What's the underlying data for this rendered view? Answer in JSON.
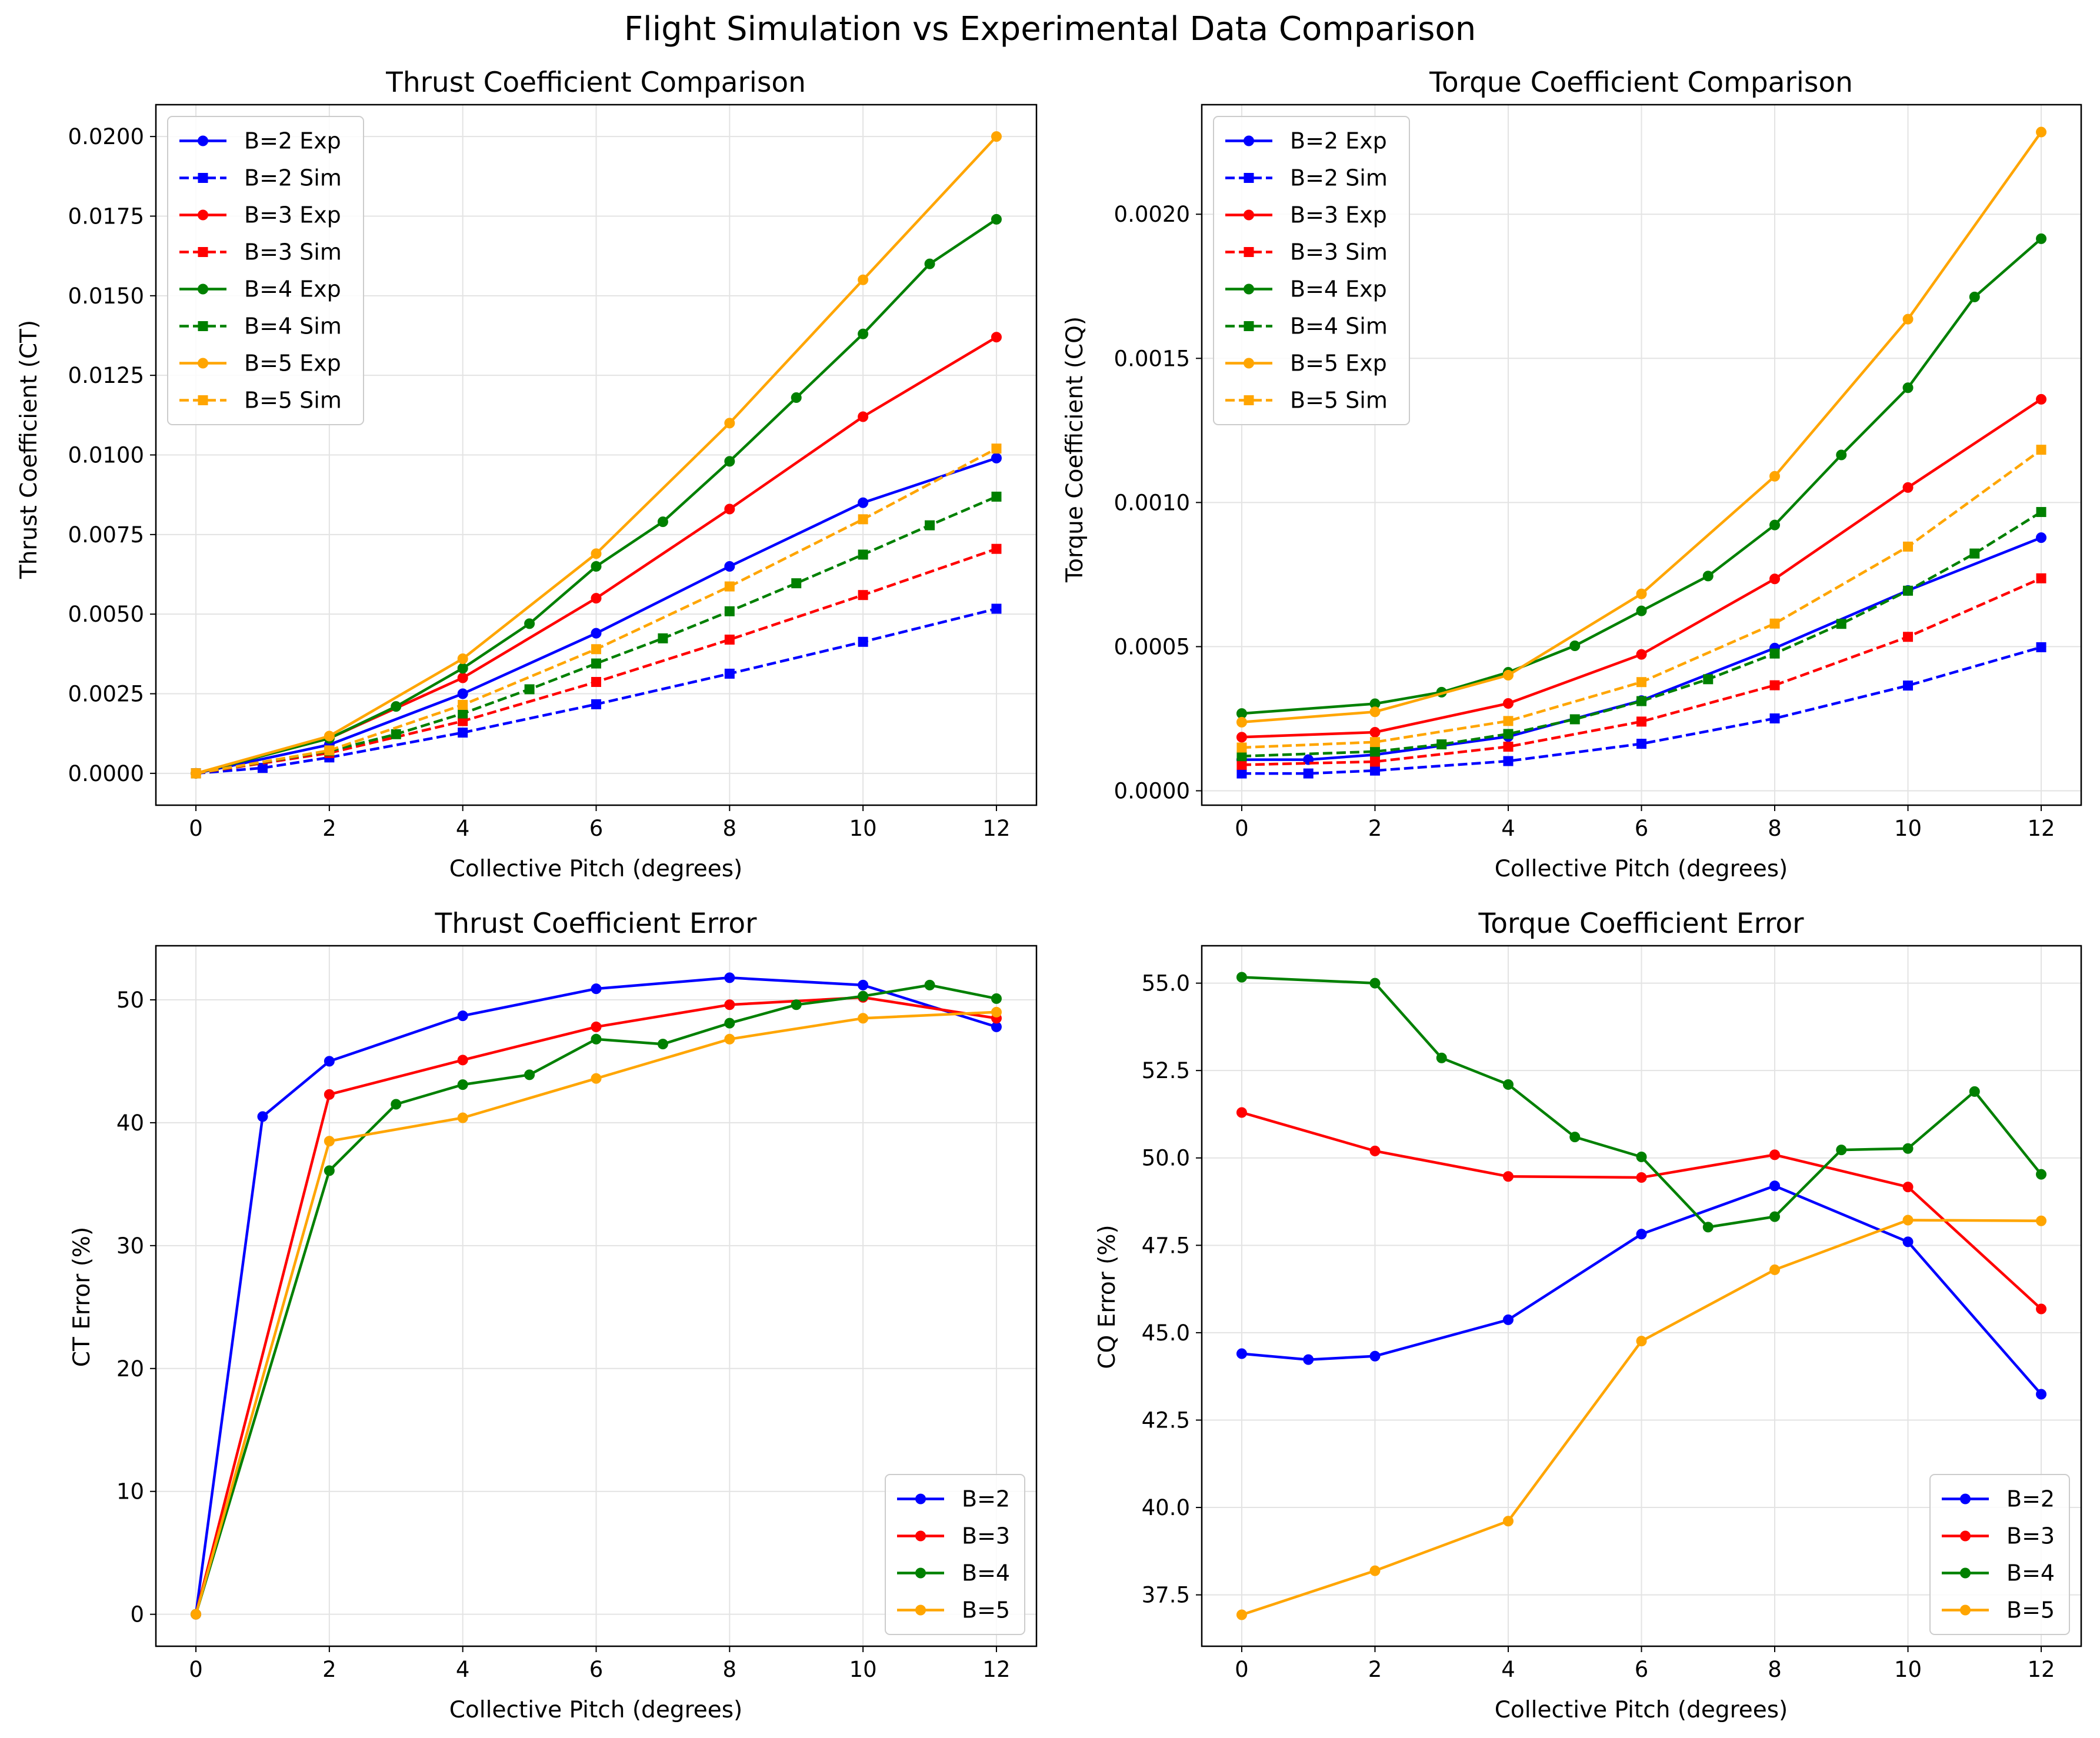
{
  "figure": {
    "suptitle": "Flight Simulation vs Experimental Data Comparison"
  },
  "colors": {
    "B2": "#0000ff",
    "B3": "#ff0000",
    "B4": "#008000",
    "B5": "#ffa500",
    "grid": "#e3e3e3",
    "axes": "#000000"
  },
  "chart_data": [
    {
      "type": "line",
      "title": "Thrust Coefficient Comparison",
      "xlabel": "Collective Pitch (degrees)",
      "ylabel": "Thrust Coefficient (CT)",
      "xlim": [
        -0.6,
        12.6
      ],
      "ylim": [
        -0.001,
        0.021
      ],
      "xticks": [
        0,
        2,
        4,
        6,
        8,
        10,
        12
      ],
      "yticks": [
        0,
        0.0025,
        0.005,
        0.0075,
        0.01,
        0.0125,
        0.015,
        0.0175,
        0.02
      ],
      "ytick_labels": [
        "0.0000",
        "0.0025",
        "0.0050",
        "0.0075",
        "0.0100",
        "0.0125",
        "0.0150",
        "0.0175",
        "0.0200"
      ],
      "grid": true,
      "legend": "top-left",
      "series": [
        {
          "name": "B=2 Exp",
          "color": "B2",
          "style": "solid",
          "marker": "circle",
          "x": [
            0,
            2,
            4,
            6,
            8,
            10,
            12
          ],
          "y": [
            0,
            0.0009,
            0.0025,
            0.0044,
            0.0065,
            0.0085,
            0.0099
          ]
        },
        {
          "name": "B=2 Sim",
          "color": "B2",
          "style": "dashed",
          "marker": "square",
          "x": [
            0,
            1,
            2,
            4,
            6,
            8,
            10,
            12
          ],
          "y": [
            0,
            0.00017,
            0.0005,
            0.00128,
            0.00217,
            0.00313,
            0.00413,
            0.00517
          ]
        },
        {
          "name": "B=3 Exp",
          "color": "B3",
          "style": "solid",
          "marker": "circle",
          "x": [
            0,
            2,
            4,
            6,
            8,
            10,
            12
          ],
          "y": [
            0,
            0.0011,
            0.003,
            0.0055,
            0.0083,
            0.0112,
            0.0137
          ]
        },
        {
          "name": "B=3 Sim",
          "color": "B3",
          "style": "dashed",
          "marker": "square",
          "x": [
            0,
            2,
            4,
            6,
            8,
            10,
            12
          ],
          "y": [
            0,
            0.00064,
            0.00164,
            0.00287,
            0.0042,
            0.0056,
            0.00705
          ]
        },
        {
          "name": "B=4 Exp",
          "color": "B4",
          "style": "solid",
          "marker": "circle",
          "x": [
            0,
            2,
            3,
            4,
            5,
            6,
            7,
            8,
            9,
            10,
            11,
            12
          ],
          "y": [
            0,
            0.0011,
            0.0021,
            0.0033,
            0.0047,
            0.0065,
            0.0079,
            0.0098,
            0.0118,
            0.0138,
            0.016,
            0.0174
          ]
        },
        {
          "name": "B=4 Sim",
          "color": "B4",
          "style": "dashed",
          "marker": "square",
          "x": [
            0,
            2,
            3,
            4,
            5,
            6,
            7,
            8,
            9,
            10,
            11,
            12
          ],
          "y": [
            0,
            0.0007,
            0.00123,
            0.00188,
            0.00264,
            0.00345,
            0.00424,
            0.00509,
            0.00597,
            0.00687,
            0.00779,
            0.00869
          ]
        },
        {
          "name": "B=5 Exp",
          "color": "B5",
          "style": "solid",
          "marker": "circle",
          "x": [
            0,
            2,
            4,
            6,
            8,
            10,
            12
          ],
          "y": [
            0,
            0.00117,
            0.0036,
            0.0069,
            0.011,
            0.0155,
            0.02
          ]
        },
        {
          "name": "B=5 Sim",
          "color": "B5",
          "style": "dashed",
          "marker": "square",
          "x": [
            0,
            2,
            4,
            6,
            8,
            10,
            12
          ],
          "y": [
            0,
            0.00072,
            0.00215,
            0.0039,
            0.00587,
            0.00798,
            0.0102
          ]
        }
      ]
    },
    {
      "type": "line",
      "title": "Torque Coefficient Comparison",
      "xlabel": "Collective Pitch (degrees)",
      "ylabel": "Torque Coefficient (CQ)",
      "xlim": [
        -0.6,
        12.6
      ],
      "ylim": [
        -5e-05,
        0.00238
      ],
      "xticks": [
        0,
        2,
        4,
        6,
        8,
        10,
        12
      ],
      "yticks": [
        0,
        0.0005,
        0.001,
        0.0015,
        0.002
      ],
      "ytick_labels": [
        "0.0000",
        "0.0005",
        "0.0010",
        "0.0015",
        "0.0020"
      ],
      "grid": true,
      "legend": "top-left",
      "series": [
        {
          "name": "B=2 Exp",
          "color": "B2",
          "style": "solid",
          "marker": "circle",
          "x": [
            0,
            1,
            2,
            4,
            6,
            8,
            10,
            12
          ],
          "y": [
            0.000108,
            0.000108,
            0.000125,
            0.000188,
            0.000313,
            0.000495,
            0.000695,
            0.000878
          ]
        },
        {
          "name": "B=2 Sim",
          "color": "B2",
          "style": "dashed",
          "marker": "square",
          "x": [
            0,
            1,
            2,
            4,
            6,
            8,
            10,
            12
          ],
          "y": [
            6e-05,
            6e-05,
            7e-05,
            0.000103,
            0.000163,
            0.000251,
            0.000365,
            0.000498
          ]
        },
        {
          "name": "B=3 Exp",
          "color": "B3",
          "style": "solid",
          "marker": "circle",
          "x": [
            0,
            2,
            4,
            6,
            8,
            10,
            12
          ],
          "y": [
            0.000186,
            0.000203,
            0.000303,
            0.000473,
            0.000735,
            0.001052,
            0.001358
          ]
        },
        {
          "name": "B=3 Sim",
          "color": "B3",
          "style": "dashed",
          "marker": "square",
          "x": [
            0,
            2,
            4,
            6,
            8,
            10,
            12
          ],
          "y": [
            9e-05,
            0.000101,
            0.000153,
            0.00024,
            0.000366,
            0.000534,
            0.000737
          ]
        },
        {
          "name": "B=4 Exp",
          "color": "B4",
          "style": "solid",
          "marker": "circle",
          "x": [
            0,
            2,
            3,
            4,
            5,
            6,
            7,
            8,
            9,
            10,
            11,
            12
          ],
          "y": [
            0.000268,
            0.000302,
            0.000342,
            0.000411,
            0.000503,
            0.000624,
            0.000745,
            0.000922,
            0.001165,
            0.001398,
            0.001713,
            0.001915
          ]
        },
        {
          "name": "B=4 Sim",
          "color": "B4",
          "style": "dashed",
          "marker": "square",
          "x": [
            0,
            2,
            3,
            4,
            5,
            6,
            7,
            8,
            9,
            10,
            11,
            12
          ],
          "y": [
            0.00012,
            0.000136,
            0.000161,
            0.000197,
            0.000248,
            0.000311,
            0.000387,
            0.000476,
            0.000579,
            0.000694,
            0.000823,
            0.000967
          ]
        },
        {
          "name": "B=5 Exp",
          "color": "B5",
          "style": "solid",
          "marker": "circle",
          "x": [
            0,
            2,
            4,
            6,
            8,
            10,
            12
          ],
          "y": [
            0.000238,
            0.000274,
            0.000401,
            0.000683,
            0.001091,
            0.001636,
            0.002285
          ]
        },
        {
          "name": "B=5 Sim",
          "color": "B5",
          "style": "dashed",
          "marker": "square",
          "x": [
            0,
            2,
            4,
            6,
            8,
            10,
            12
          ],
          "y": [
            0.00015,
            0.000169,
            0.000242,
            0.000377,
            0.00058,
            0.000847,
            0.001183
          ]
        }
      ]
    },
    {
      "type": "line",
      "title": "Thrust Coefficient Error",
      "xlabel": "Collective Pitch (degrees)",
      "ylabel": "CT Error (%)",
      "xlim": [
        -0.6,
        12.6
      ],
      "ylim": [
        -2.6,
        54.4
      ],
      "xticks": [
        0,
        2,
        4,
        6,
        8,
        10,
        12
      ],
      "yticks": [
        0,
        10,
        20,
        30,
        40,
        50
      ],
      "ytick_labels": [
        "0",
        "10",
        "20",
        "30",
        "40",
        "50"
      ],
      "grid": true,
      "legend": "bottom-right",
      "series": [
        {
          "name": "B=2",
          "color": "B2",
          "style": "solid",
          "marker": "circle",
          "x": [
            0,
            1,
            2,
            4,
            6,
            8,
            10,
            12
          ],
          "y": [
            0,
            40.5,
            45.0,
            48.7,
            50.9,
            51.8,
            51.2,
            47.8
          ]
        },
        {
          "name": "B=3",
          "color": "B3",
          "style": "solid",
          "marker": "circle",
          "x": [
            0,
            2,
            4,
            6,
            8,
            10,
            12
          ],
          "y": [
            0,
            42.3,
            45.1,
            47.8,
            49.6,
            50.2,
            48.5
          ]
        },
        {
          "name": "B=4",
          "color": "B4",
          "style": "solid",
          "marker": "circle",
          "x": [
            0,
            2,
            3,
            4,
            5,
            6,
            7,
            8,
            9,
            10,
            11,
            12
          ],
          "y": [
            0,
            36.1,
            41.5,
            43.1,
            43.9,
            46.8,
            46.4,
            48.1,
            49.6,
            50.3,
            51.2,
            50.1
          ]
        },
        {
          "name": "B=5",
          "color": "B5",
          "style": "solid",
          "marker": "circle",
          "x": [
            0,
            2,
            4,
            6,
            8,
            10,
            12
          ],
          "y": [
            0,
            38.5,
            40.4,
            43.6,
            46.8,
            48.5,
            49.0
          ]
        }
      ]
    },
    {
      "type": "line",
      "title": "Torque Coefficient Error",
      "xlabel": "Collective Pitch (degrees)",
      "ylabel": "CQ Error (%)",
      "xlim": [
        -0.6,
        12.6
      ],
      "ylim": [
        36.03,
        56.07
      ],
      "xticks": [
        0,
        2,
        4,
        6,
        8,
        10,
        12
      ],
      "yticks": [
        37.5,
        40.0,
        42.5,
        45.0,
        47.5,
        50.0,
        52.5,
        55.0
      ],
      "ytick_labels": [
        "37.5",
        "40.0",
        "42.5",
        "45.0",
        "47.5",
        "50.0",
        "52.5",
        "55.0"
      ],
      "grid": true,
      "legend": "bottom-right",
      "series": [
        {
          "name": "B=2",
          "color": "B2",
          "style": "solid",
          "marker": "circle",
          "x": [
            0,
            1,
            2,
            4,
            6,
            8,
            10,
            12
          ],
          "y": [
            44.4,
            44.23,
            44.33,
            45.37,
            47.82,
            49.2,
            47.6,
            43.24
          ]
        },
        {
          "name": "B=3",
          "color": "B3",
          "style": "solid",
          "marker": "circle",
          "x": [
            0,
            2,
            4,
            6,
            8,
            10,
            12
          ],
          "y": [
            51.3,
            50.2,
            49.47,
            49.44,
            50.09,
            49.17,
            45.68
          ]
        },
        {
          "name": "B=4",
          "color": "B4",
          "style": "solid",
          "marker": "circle",
          "x": [
            0,
            2,
            3,
            4,
            5,
            6,
            7,
            8,
            9,
            10,
            11,
            12
          ],
          "y": [
            55.17,
            55.0,
            52.86,
            52.1,
            50.6,
            50.03,
            48.02,
            48.32,
            50.23,
            50.27,
            51.9,
            49.53
          ]
        },
        {
          "name": "B=5",
          "color": "B5",
          "style": "solid",
          "marker": "circle",
          "x": [
            0,
            2,
            4,
            6,
            8,
            10,
            12
          ],
          "y": [
            36.93,
            38.19,
            39.61,
            44.76,
            46.8,
            48.22,
            48.2
          ]
        }
      ]
    }
  ]
}
